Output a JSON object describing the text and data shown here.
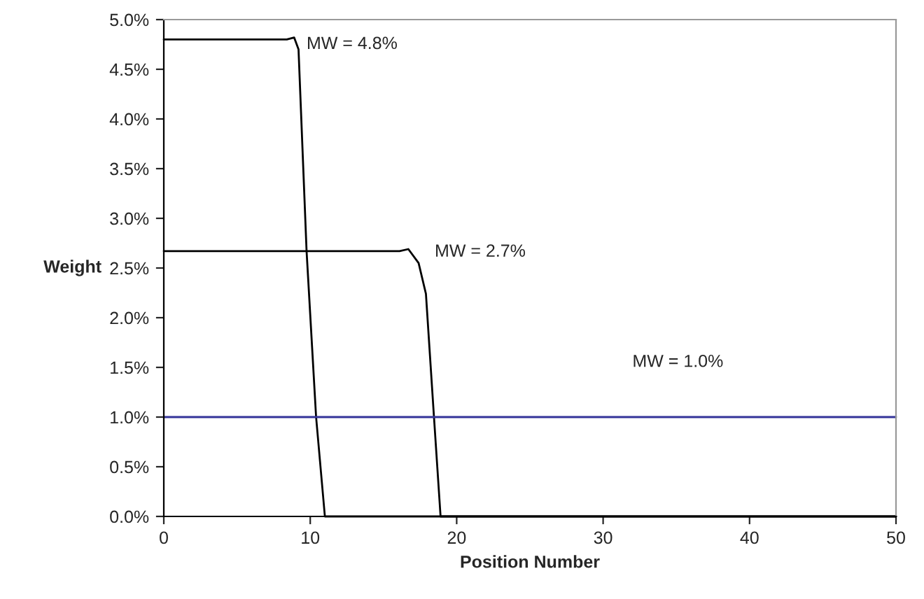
{
  "chart_data": {
    "type": "line",
    "xlabel": "Position Number",
    "ylabel": "Weight",
    "xlim": [
      0,
      50
    ],
    "xticks": [
      0,
      10,
      20,
      30,
      40,
      50
    ],
    "ylim": [
      0,
      0.05
    ],
    "yticks": [
      {
        "value": 0,
        "label": "0.0%"
      },
      {
        "value": 0.005,
        "label": "0.5%"
      },
      {
        "value": 0.01,
        "label": "1.0%"
      },
      {
        "value": 0.015,
        "label": "1.5%"
      },
      {
        "value": 0.02,
        "label": "2.0%"
      },
      {
        "value": 0.025,
        "label": "2.5%"
      },
      {
        "value": 0.03,
        "label": "3.0%"
      },
      {
        "value": 0.035,
        "label": "3.5%"
      },
      {
        "value": 0.04,
        "label": "4.0%"
      },
      {
        "value": 0.045,
        "label": "4.5%"
      },
      {
        "value": 0.05,
        "label": "5.0%"
      }
    ],
    "grid": false,
    "legend": false,
    "marker": "none",
    "line_style": "solid",
    "series": [
      {
        "color": "#000000",
        "x": [
          0,
          8.4,
          8.9,
          9.2,
          9.75,
          10.4,
          11.0,
          50
        ],
        "values": [
          0.048,
          0.048,
          0.0482,
          0.047,
          0.0267,
          0.01,
          0,
          0
        ]
      },
      {
        "color": "#000000",
        "x": [
          0,
          16.1,
          16.7,
          17.4,
          17.9,
          18.45,
          18.9,
          50
        ],
        "values": [
          0.0267,
          0.0267,
          0.0269,
          0.0255,
          0.0224,
          0.01,
          0,
          0
        ]
      },
      {
        "color": "#333399",
        "x": [
          0,
          50
        ],
        "values": [
          0.01,
          0.01
        ]
      }
    ],
    "annotations": [
      "MW = 4.8%",
      "MW = 2.7%",
      "MW = 1.0%"
    ]
  }
}
